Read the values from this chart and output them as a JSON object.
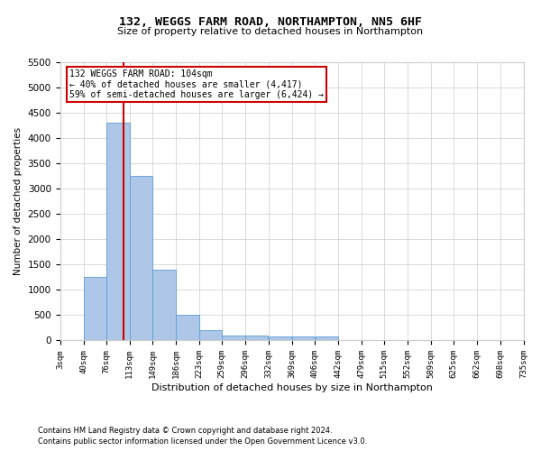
{
  "title": "132, WEGGS FARM ROAD, NORTHAMPTON, NN5 6HF",
  "subtitle": "Size of property relative to detached houses in Northampton",
  "xlabel": "Distribution of detached houses by size in Northampton",
  "ylabel": "Number of detached properties",
  "footer_line1": "Contains HM Land Registry data © Crown copyright and database right 2024.",
  "footer_line2": "Contains public sector information licensed under the Open Government Licence v3.0.",
  "annotation_line1": "132 WEGGS FARM ROAD: 104sqm",
  "annotation_line2": "← 40% of detached houses are smaller (4,417)",
  "annotation_line3": "59% of semi-detached houses are larger (6,424) →",
  "bar_color": "#aec6e8",
  "bar_edge_color": "#5a9fd4",
  "vline_color": "#cc0000",
  "vline_x": 104,
  "annotation_box_color": "#cc0000",
  "bin_edges": [
    3,
    40,
    76,
    113,
    149,
    186,
    223,
    259,
    296,
    332,
    369,
    406,
    442,
    479,
    515,
    552,
    589,
    625,
    662,
    698,
    735
  ],
  "bin_labels": [
    "3sqm",
    "40sqm",
    "76sqm",
    "113sqm",
    "149sqm",
    "186sqm",
    "223sqm",
    "259sqm",
    "296sqm",
    "332sqm",
    "369sqm",
    "406sqm",
    "442sqm",
    "479sqm",
    "515sqm",
    "552sqm",
    "589sqm",
    "625sqm",
    "662sqm",
    "698sqm",
    "735sqm"
  ],
  "bar_heights": [
    0,
    1250,
    4300,
    3250,
    1400,
    500,
    200,
    100,
    100,
    75,
    75,
    75,
    0,
    0,
    0,
    0,
    0,
    0,
    0,
    0
  ],
  "ylim": [
    0,
    5500
  ],
  "yticks": [
    0,
    500,
    1000,
    1500,
    2000,
    2500,
    3000,
    3500,
    4000,
    4500,
    5000,
    5500
  ],
  "background_color": "#ffffff",
  "grid_color": "#cccccc"
}
